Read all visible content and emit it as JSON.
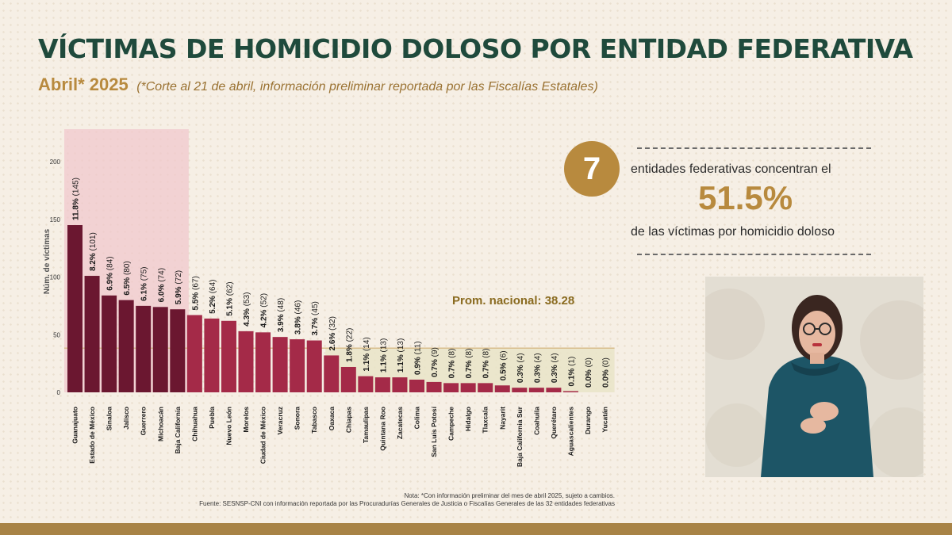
{
  "header": {
    "title": "VÍCTIMAS DE HOMICIDIO DOLOSO POR ENTIDAD FEDERATIVA",
    "period": "Abril* 2025",
    "note": "(*Corte al 21 de abril, información preliminar reportada por las Fiscalías Estatales)"
  },
  "highlight": {
    "count": "7",
    "text_before": "entidades federativas concentran el",
    "percent": "51.5%",
    "text_after": "de las víctimas por homicidio doloso"
  },
  "average": {
    "label": "Prom. nacional: 38.28"
  },
  "footer": {
    "nota": "Nota: *Con información preliminar del mes de abril 2025, sujeto a cambios.",
    "fuente": "Fuente: SESNSP-CNI con información reportada por las Procuradurías Generales de Justicia o Fiscalías Generales de las 32 entidades federativas"
  },
  "chart_data": {
    "type": "bar",
    "title": "",
    "xlabel": "",
    "ylabel": "Núm. de víctimas",
    "ylim": [
      0,
      220
    ],
    "yticks": [
      0,
      50,
      100,
      150,
      200
    ],
    "average_line": 38.28,
    "highlighted_top_n": 7,
    "categories": [
      "Guanajuato",
      "Estado de México",
      "Sinaloa",
      "Jalisco",
      "Guerrero",
      "Michoacán",
      "Baja California",
      "Chihuahua",
      "Puebla",
      "Nuevo León",
      "Morelos",
      "Ciudad de México",
      "Veracruz",
      "Sonora",
      "Tabasco",
      "Oaxaca",
      "Chiapas",
      "Tamaulipas",
      "Quintana Roo",
      "Zacatecas",
      "Colima",
      "San Luis Potosí",
      "Campeche",
      "Hidalgo",
      "Tlaxcala",
      "Nayarit",
      "Baja California Sur",
      "Coahuila",
      "Querétaro",
      "Aguascalientes",
      "Durango",
      "Yucatán"
    ],
    "values": [
      145,
      101,
      84,
      80,
      75,
      74,
      72,
      67,
      64,
      62,
      53,
      52,
      48,
      46,
      45,
      32,
      22,
      14,
      13,
      13,
      11,
      9,
      8,
      8,
      8,
      6,
      4,
      4,
      4,
      1,
      0,
      0
    ],
    "pct_labels": [
      "11.8%",
      "8.2%",
      "6.9%",
      "6.5%",
      "6.1%",
      "6.0%",
      "5.9%",
      "5.5%",
      "5.2%",
      "5.1%",
      "4.3%",
      "4.2%",
      "3.9%",
      "3.8%",
      "3.7%",
      "2.6%",
      "1.8%",
      "1.1%",
      "1.1%",
      "1.1%",
      "0.9%",
      "0.7%",
      "0.7%",
      "0.7%",
      "0.7%",
      "0.5%",
      "0.3%",
      "0.3%",
      "0.3%",
      "0.1%",
      "0.0%",
      "0.0%"
    ],
    "colors": {
      "top": "#6b1730",
      "rest": "#a42a48",
      "highlight_band": "#f0c8cc",
      "below_avg_band": "#e9e4c8",
      "avg_line": "#d8bd8c",
      "avg_label": "#8a6b20"
    }
  }
}
